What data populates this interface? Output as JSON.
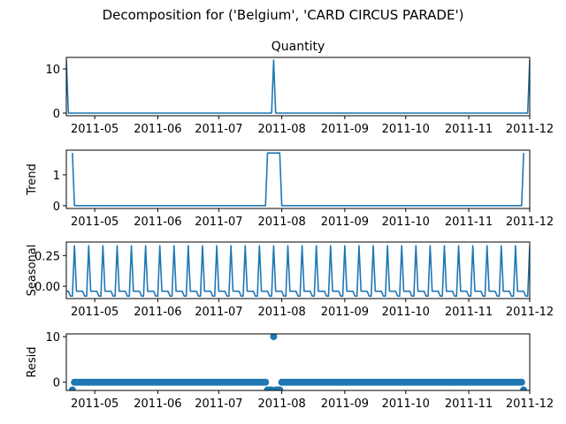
{
  "figure": {
    "suptitle": "Decomposition for ('Belgium', 'CARD CIRCUS PARADE')",
    "line_color": "#1f77b4"
  },
  "chart_data": [
    {
      "type": "line",
      "title": "Quantity",
      "ylabel": "",
      "x_start": "2011-04-17",
      "x_step_days": 1,
      "xlim": [
        "2011-04-17",
        "2011-12-01"
      ],
      "ylim": [
        -0.6,
        12.6
      ],
      "yticks": [
        0,
        10
      ],
      "xtick_labels": [
        "2011-05",
        "2011-06",
        "2011-07",
        "2011-08",
        "2011-09",
        "2011-10",
        "2011-11",
        "2011-12"
      ],
      "xtick_dates": [
        "2011-05-01",
        "2011-06-01",
        "2011-07-01",
        "2011-08-01",
        "2011-09-01",
        "2011-10-01",
        "2011-11-01",
        "2011-12-01"
      ],
      "series": [
        {
          "points": [
            [
              "2011-04-17",
              12
            ],
            [
              "2011-04-18",
              0
            ],
            [
              "2011-07-27",
              0
            ],
            [
              "2011-07-28",
              12
            ],
            [
              "2011-07-29",
              0
            ],
            [
              "2011-11-30",
              0
            ],
            [
              "2011-12-01",
              12
            ]
          ]
        }
      ]
    },
    {
      "type": "line",
      "title": "",
      "ylabel": "Trend",
      "xlim": [
        "2011-04-17",
        "2011-12-01"
      ],
      "ylim": [
        -0.09,
        1.8
      ],
      "yticks": [
        0,
        1
      ],
      "xtick_labels": [
        "2011-05",
        "2011-06",
        "2011-07",
        "2011-08",
        "2011-09",
        "2011-10",
        "2011-11",
        "2011-12"
      ],
      "xtick_dates": [
        "2011-05-01",
        "2011-06-01",
        "2011-07-01",
        "2011-08-01",
        "2011-09-01",
        "2011-10-01",
        "2011-11-01",
        "2011-12-01"
      ],
      "series": [
        {
          "points": [
            [
              "2011-04-20",
              1.71
            ],
            [
              "2011-04-21",
              0
            ],
            [
              "2011-07-24",
              0
            ],
            [
              "2011-07-25",
              1.71
            ],
            [
              "2011-07-31",
              1.71
            ],
            [
              "2011-08-01",
              0
            ],
            [
              "2011-11-27",
              0
            ],
            [
              "2011-11-28",
              1.71
            ]
          ]
        }
      ]
    },
    {
      "type": "line",
      "title": "",
      "ylabel": "Seasonal",
      "xlim": [
        "2011-04-17",
        "2011-12-01"
      ],
      "ylim": [
        -0.1,
        0.36
      ],
      "yticks": [
        0.0,
        0.25
      ],
      "ytick_labels": [
        "0.00",
        "0.25"
      ],
      "xtick_labels": [
        "2011-05",
        "2011-06",
        "2011-07",
        "2011-08",
        "2011-09",
        "2011-10",
        "2011-11",
        "2011-12"
      ],
      "xtick_dates": [
        "2011-05-01",
        "2011-06-01",
        "2011-07-01",
        "2011-08-01",
        "2011-09-01",
        "2011-10-01",
        "2011-11-01",
        "2011-12-01"
      ],
      "series": [
        {
          "periodic": true,
          "period_days": 7,
          "first_period_start": "2011-04-17",
          "pattern": [
            -0.04,
            -0.04,
            -0.08,
            -0.08,
            0.33,
            -0.04,
            -0.04
          ]
        }
      ]
    },
    {
      "type": "scatter",
      "title": "",
      "ylabel": "Resid",
      "xlim": [
        "2011-04-17",
        "2011-12-01"
      ],
      "ylim": [
        -1.8,
        10.6
      ],
      "yticks": [
        0,
        10
      ],
      "xtick_labels": [
        "2011-05",
        "2011-06",
        "2011-07",
        "2011-08",
        "2011-09",
        "2011-10",
        "2011-11",
        "2011-12"
      ],
      "xtick_dates": [
        "2011-05-01",
        "2011-06-01",
        "2011-07-01",
        "2011-08-01",
        "2011-09-01",
        "2011-10-01",
        "2011-11-01",
        "2011-12-01"
      ],
      "series": [
        {
          "start": "2011-04-20",
          "end": "2011-11-28",
          "default_value": 0,
          "overrides": [
            [
              "2011-04-20",
              -1.7
            ],
            [
              "2011-07-25",
              -1.7
            ],
            [
              "2011-07-26",
              -1.7
            ],
            [
              "2011-07-27",
              -1.7
            ],
            [
              "2011-07-28",
              10
            ],
            [
              "2011-07-29",
              -1.7
            ],
            [
              "2011-07-30",
              -1.7
            ],
            [
              "2011-07-31",
              -1.7
            ],
            [
              "2011-11-28",
              -1.7
            ]
          ]
        }
      ]
    }
  ]
}
